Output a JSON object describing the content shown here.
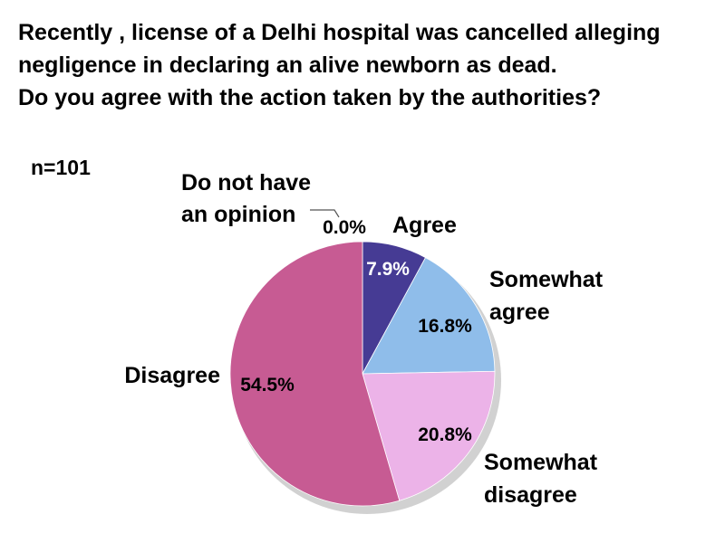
{
  "question": {
    "lines": [
      "Recently , license of a Delhi hospital was cancelled alleging",
      "negligence in declaring an alive newborn as dead.",
      "Do you agree with the action taken by the authorities?"
    ]
  },
  "sample_size": "n=101",
  "chart_data": {
    "type": "pie",
    "title": "",
    "start_angle_deg": 0,
    "direction": "clockwise",
    "slices": [
      {
        "label": "Agree",
        "label_lines": [
          "Agree"
        ],
        "value": 7.9,
        "value_label": "7.9%",
        "color": "#463b94",
        "value_text_color": "#ffffff"
      },
      {
        "label": "Somewhat agree",
        "label_lines": [
          "Somewhat",
          "agree"
        ],
        "value": 16.8,
        "value_label": "16.8%",
        "color": "#8fbdea",
        "value_text_color": "#000000"
      },
      {
        "label": "Somewhat disagree",
        "label_lines": [
          "Somewhat",
          "disagree"
        ],
        "value": 20.8,
        "value_label": "20.8%",
        "color": "#ecb3e8",
        "value_text_color": "#000000"
      },
      {
        "label": "Disagree",
        "label_lines": [
          "Disagree"
        ],
        "value": 54.5,
        "value_label": "54.5%",
        "color": "#c75b93",
        "value_text_color": "#000000"
      },
      {
        "label": "Do not have an opinion",
        "label_lines": [
          "Do not have",
          "an opinion"
        ],
        "value": 0.0,
        "value_label": "0.0%",
        "color": "#6b6bb0",
        "value_text_color": "#000000"
      }
    ]
  }
}
